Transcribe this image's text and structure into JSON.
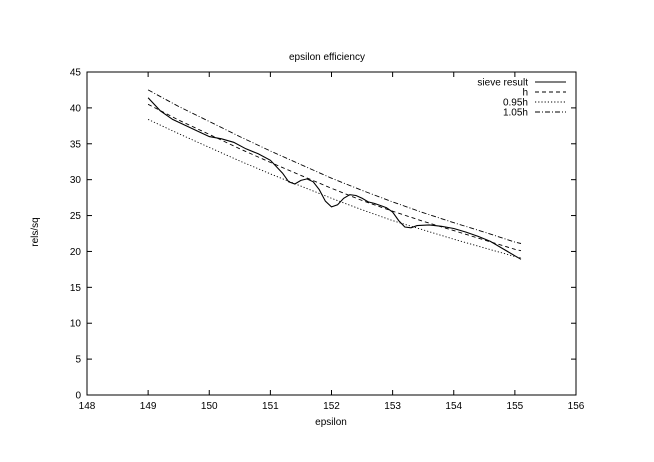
{
  "chart_data": {
    "type": "line",
    "title": "epsilon efficiency",
    "xlabel": "epsilon",
    "ylabel": "rels/sq",
    "xlim": [
      148,
      156
    ],
    "ylim": [
      0,
      45
    ],
    "x_ticks": [
      "148",
      "149",
      "150",
      "151",
      "152",
      "153",
      "154",
      "155",
      "156"
    ],
    "y_ticks": [
      "0",
      "5",
      "10",
      "15",
      "20",
      "25",
      "30",
      "35",
      "40",
      "45"
    ],
    "grid": false,
    "legend_position": "top-right",
    "series": [
      {
        "name": "sieve result",
        "style": "solid",
        "x": [
          149.0,
          149.2,
          149.4,
          149.6,
          149.8,
          150.0,
          150.2,
          150.4,
          150.6,
          150.8,
          151.0,
          151.2,
          151.3,
          151.4,
          151.5,
          151.6,
          151.7,
          151.8,
          151.9,
          152.0,
          152.1,
          152.2,
          152.3,
          152.4,
          152.5,
          152.6,
          152.7,
          152.8,
          152.9,
          153.0,
          153.1,
          153.2,
          153.3,
          153.4,
          153.6,
          153.8,
          154.0,
          154.2,
          154.4,
          154.6,
          154.8,
          155.0,
          155.1
        ],
        "y": [
          41.4,
          39.6,
          38.4,
          37.6,
          36.8,
          36.0,
          35.7,
          35.2,
          34.3,
          33.6,
          32.7,
          30.9,
          29.7,
          29.4,
          29.9,
          30.1,
          29.7,
          28.6,
          27.0,
          26.2,
          26.5,
          27.4,
          27.9,
          27.8,
          27.4,
          26.9,
          26.7,
          26.4,
          26.1,
          25.5,
          24.3,
          23.4,
          23.3,
          23.6,
          23.7,
          23.5,
          23.2,
          22.7,
          22.1,
          21.4,
          20.4,
          19.4,
          18.9
        ]
      },
      {
        "name": "h",
        "style": "dashed",
        "x": [
          149.0,
          149.5,
          150.0,
          150.5,
          151.0,
          151.5,
          152.0,
          152.5,
          153.0,
          153.5,
          154.0,
          154.5,
          155.0,
          155.1
        ],
        "y": [
          40.5,
          38.3,
          36.3,
          34.3,
          32.4,
          30.6,
          28.8,
          27.1,
          25.6,
          24.2,
          22.9,
          21.6,
          20.3,
          20.1
        ]
      },
      {
        "name": "0.95h",
        "style": "dotted",
        "x": [
          149.0,
          149.5,
          150.0,
          150.5,
          151.0,
          151.5,
          152.0,
          152.5,
          153.0,
          153.5,
          154.0,
          154.5,
          155.0,
          155.1
        ],
        "y": [
          38.4,
          36.4,
          34.5,
          32.6,
          30.8,
          29.1,
          27.4,
          25.8,
          24.3,
          23.0,
          21.7,
          20.5,
          19.3,
          19.1
        ]
      },
      {
        "name": "1.05h",
        "style": "dashdot",
        "x": [
          149.0,
          149.5,
          150.0,
          150.5,
          151.0,
          151.5,
          152.0,
          152.5,
          153.0,
          153.5,
          154.0,
          154.5,
          155.0,
          155.1
        ],
        "y": [
          42.5,
          40.2,
          38.1,
          36.0,
          34.0,
          32.1,
          30.2,
          28.5,
          26.9,
          25.4,
          24.0,
          22.7,
          21.3,
          21.1
        ]
      }
    ]
  }
}
